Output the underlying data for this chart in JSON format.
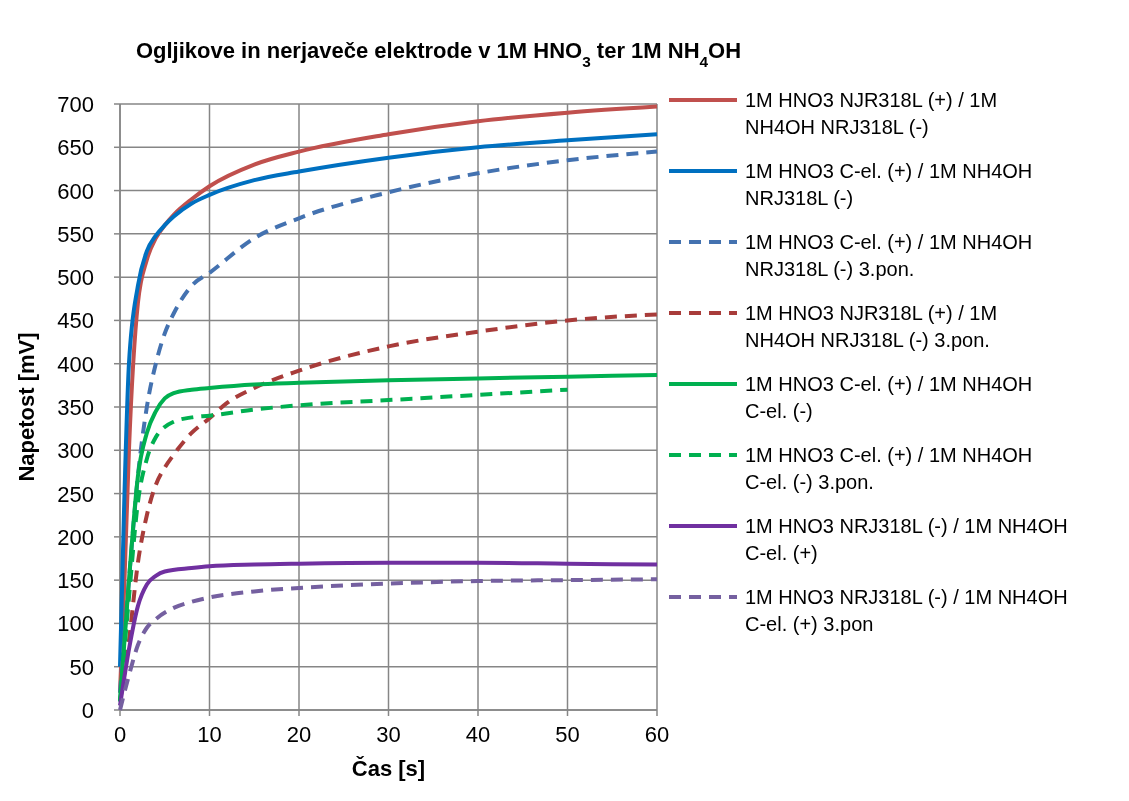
{
  "chart_data": {
    "type": "line",
    "title": "Ogljikove in nerjaveče elektrode v 1M HNO$_{3}$ ter 1M NH$_{4}$OH",
    "xlabel": "Čas [s]",
    "ylabel": "Napetost [mV]",
    "xlim": [
      0,
      60
    ],
    "xticks": [
      0,
      10,
      20,
      30,
      40,
      50,
      60
    ],
    "ylim": [
      0,
      700
    ],
    "yticks": [
      0,
      50,
      100,
      150,
      200,
      250,
      300,
      350,
      400,
      450,
      500,
      550,
      600,
      650,
      700
    ],
    "grid": true,
    "legend": "right",
    "marker": "none",
    "series": [
      {
        "name": "1M HNO3  NJR318L (+) / 1M NH4OH NRJ318L (-)",
        "color": "#c0504d",
        "line_style": "solid",
        "x": [
          0,
          0.5,
          1,
          2,
          3,
          4,
          5,
          6,
          8,
          10,
          15,
          20,
          30,
          40,
          50,
          60
        ],
        "values": [
          20,
          150,
          300,
          470,
          520,
          545,
          560,
          572,
          590,
          605,
          630,
          645,
          665,
          680,
          690,
          697
        ]
      },
      {
        "name": "1M HNO3 C-el. (+) / 1M NH4OH NRJ318L (-)",
        "color": "#0070c0",
        "line_style": "solid",
        "x": [
          0,
          0.5,
          1,
          2,
          3,
          4,
          5,
          6,
          8,
          10,
          15,
          20,
          30,
          40,
          50,
          60
        ],
        "values": [
          50,
          250,
          400,
          490,
          530,
          548,
          560,
          570,
          585,
          595,
          612,
          622,
          638,
          650,
          658,
          665
        ]
      },
      {
        "name": "1M HNO3 C-el. (+) / 1M NH4OH NRJ318L (-) 3.pon.",
        "color": "#4472b0",
        "line_style": "dashed",
        "x": [
          0,
          1,
          2,
          3,
          4,
          5,
          6,
          8,
          10,
          15,
          20,
          30,
          40,
          50,
          60
        ],
        "values": [
          20,
          150,
          270,
          350,
          400,
          435,
          458,
          490,
          505,
          545,
          568,
          598,
          620,
          635,
          645
        ]
      },
      {
        "name": "1M HNO3  NJR318L (+) / 1M NH4OH NRJ318L (-) 3.pon.",
        "color": "#a83c3a",
        "line_style": "dashed",
        "x": [
          0,
          1,
          2,
          3,
          4,
          5,
          6,
          8,
          10,
          12,
          15,
          20,
          30,
          40,
          50,
          60
        ],
        "values": [
          10,
          80,
          170,
          225,
          260,
          280,
          295,
          320,
          337,
          355,
          372,
          392,
          420,
          437,
          450,
          457
        ]
      },
      {
        "name": "1M HNO3  C-el. (+) / 1M NH4OH  C-el. (-)",
        "color": "#00b050",
        "line_style": "solid",
        "x": [
          0,
          1,
          2,
          3,
          4,
          5,
          6,
          8,
          10,
          15,
          20,
          30,
          40,
          50,
          60
        ],
        "values": [
          10,
          150,
          270,
          320,
          345,
          360,
          366,
          370,
          372,
          376,
          378,
          381,
          383,
          385,
          387
        ]
      },
      {
        "name": "1M HNO3  C-el. (+) / 1M NH4OH  C-el. (-) 3.pon.",
        "color": "#00b050",
        "line_style": "dashed",
        "x": [
          0,
          1,
          2,
          3,
          4,
          5,
          6,
          8,
          10,
          15,
          20,
          30,
          40,
          50
        ],
        "values": [
          10,
          130,
          240,
          290,
          315,
          327,
          333,
          338,
          340,
          347,
          352,
          358,
          364,
          370
        ]
      },
      {
        "name": "1M HNO3 NRJ318L (-) / 1M NH4OH C-el. (+)",
        "color": "#7030a0",
        "line_style": "solid",
        "x": [
          0,
          1,
          2,
          3,
          4,
          5,
          8,
          10,
          15,
          20,
          30,
          40,
          50,
          60
        ],
        "values": [
          5,
          70,
          120,
          145,
          155,
          160,
          164,
          166,
          168,
          169,
          170,
          170,
          169,
          168
        ]
      },
      {
        "name": "1M HNO3 NRJ318L (-) / 1M NH4OH C-el. (+) 3.pon",
        "color": "#7560a0",
        "line_style": "dashed",
        "x": [
          0,
          1,
          2,
          3,
          4,
          6,
          8,
          10,
          15,
          20,
          30,
          40,
          50,
          60
        ],
        "values": [
          0,
          40,
          75,
          95,
          105,
          118,
          125,
          130,
          137,
          141,
          146,
          149,
          150,
          151
        ]
      }
    ]
  }
}
